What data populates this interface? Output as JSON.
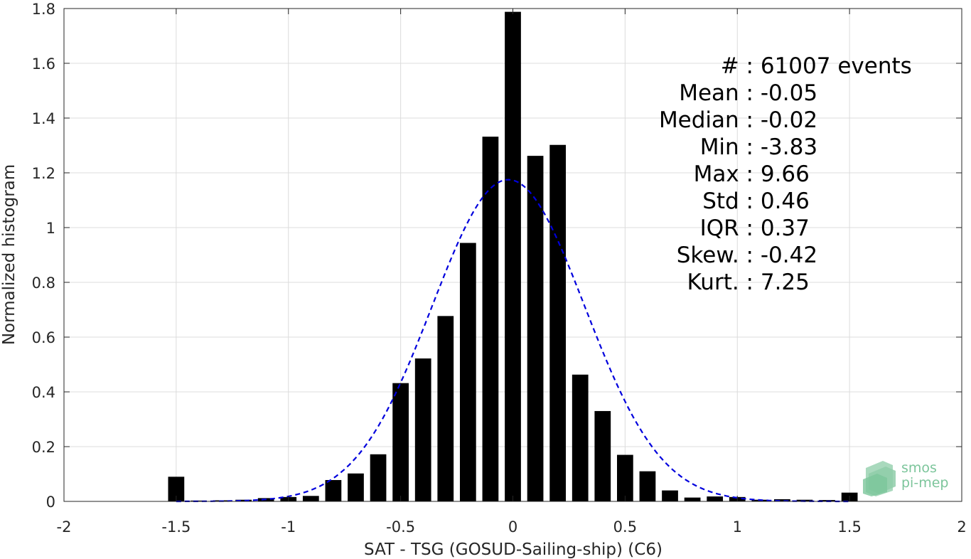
{
  "chart_data": {
    "type": "bar",
    "xlabel": "SAT - TSG (GOSUD-Sailing-ship) (C6)",
    "ylabel": "Normalized histogram",
    "xlim": [
      -2,
      2
    ],
    "ylim": [
      0,
      1.8
    ],
    "xticks": [
      -2,
      -1.5,
      -1,
      -0.5,
      0,
      0.5,
      1,
      1.5,
      2
    ],
    "xtick_labels": [
      "-2",
      "-1.5",
      "-1",
      "-0.5",
      "0",
      "0.5",
      "1",
      "1.5",
      "2"
    ],
    "yticks": [
      0,
      0.2,
      0.4,
      0.6,
      0.8,
      1,
      1.2,
      1.4,
      1.6,
      1.8
    ],
    "ytick_labels": [
      "0",
      "0.2",
      "0.4",
      "0.6",
      "0.8",
      "1",
      "1.2",
      "1.4",
      "1.6",
      "1.8"
    ],
    "grid": true,
    "bar_color": "#000000",
    "fit_color": "#0000dd",
    "bars": {
      "x": [
        -1.5,
        -1.4,
        -1.3,
        -1.2,
        -1.1,
        -1.0,
        -0.9,
        -0.8,
        -0.7,
        -0.6,
        -0.5,
        -0.4,
        -0.3,
        -0.2,
        -0.1,
        0.0,
        0.1,
        0.2,
        0.3,
        0.4,
        0.5,
        0.6,
        0.7,
        0.8,
        0.9,
        1.0,
        1.1,
        1.2,
        1.3,
        1.4,
        1.5
      ],
      "values": [
        0.09,
        0.003,
        0.004,
        0.006,
        0.012,
        0.016,
        0.02,
        0.078,
        0.102,
        0.172,
        0.432,
        0.522,
        0.677,
        0.944,
        1.332,
        1.788,
        1.262,
        1.302,
        0.463,
        0.33,
        0.17,
        0.11,
        0.04,
        0.014,
        0.018,
        0.016,
        0.006,
        0.008,
        0.006,
        0.005,
        0.032
      ]
    },
    "fit": {
      "name": "Gaussian",
      "mean": -0.02,
      "std": 0.34,
      "peak": 1.175,
      "style": "dashed"
    }
  },
  "stats": [
    {
      "label": "#  :",
      "value": "61007 events"
    },
    {
      "label": "Mean :",
      "value": "-0.05"
    },
    {
      "label": "Median :",
      "value": "-0.02"
    },
    {
      "label": "Min :",
      "value": "-3.83"
    },
    {
      "label": "Max :",
      "value": "9.66"
    },
    {
      "label": "Std :",
      "value": "0.46"
    },
    {
      "label": "IQR :",
      "value": "0.37"
    },
    {
      "label": "Skew. :",
      "value": "-0.42"
    },
    {
      "label": "Kurt. :",
      "value": "7.25"
    }
  ],
  "logo": {
    "line1": "smos",
    "line2": "pi-mep",
    "color": "#7cc59b"
  }
}
